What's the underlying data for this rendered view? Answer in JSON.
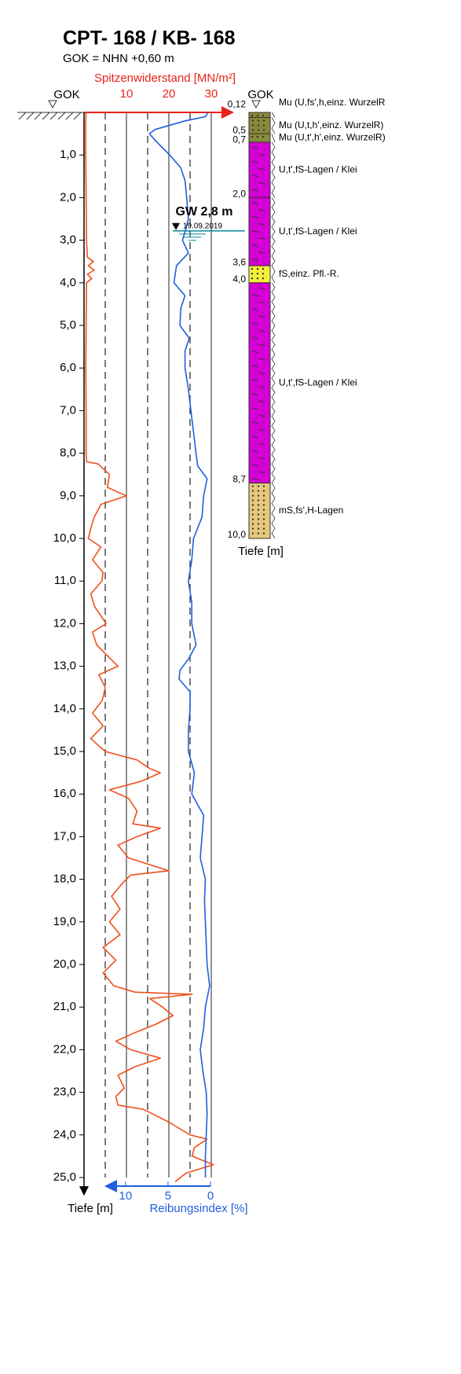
{
  "chart_data": {
    "type": "cpt-log",
    "title": "CPT- 168 / KB- 168",
    "subtitle": "GOK = NHN +0,60 m",
    "gok_label": "GOK",
    "depth_label": "Tiefe [m]",
    "ylim": [
      0,
      25.4
    ],
    "yticks": [
      {
        "value": 1,
        "label": "1,0"
      },
      {
        "value": 2,
        "label": "2,0"
      },
      {
        "value": 3,
        "label": "3,0"
      },
      {
        "value": 4,
        "label": "4,0"
      },
      {
        "value": 5,
        "label": "5,0"
      },
      {
        "value": 6,
        "label": "6,0"
      },
      {
        "value": 7,
        "label": "7,0"
      },
      {
        "value": 8,
        "label": "8,0"
      },
      {
        "value": 9,
        "label": "9,0"
      },
      {
        "value": 10,
        "label": "10,0"
      },
      {
        "value": 11,
        "label": "11,0"
      },
      {
        "value": 12,
        "label": "12,0"
      },
      {
        "value": 13,
        "label": "13,0"
      },
      {
        "value": 14,
        "label": "14,0"
      },
      {
        "value": 15,
        "label": "15,0"
      },
      {
        "value": 16,
        "label": "16,0"
      },
      {
        "value": 17,
        "label": "17,0"
      },
      {
        "value": 18,
        "label": "18,0"
      },
      {
        "value": 19,
        "label": "19,0"
      },
      {
        "value": 20,
        "label": "20,0"
      },
      {
        "value": 21,
        "label": "21,0"
      },
      {
        "value": 22,
        "label": "22,0"
      },
      {
        "value": 23,
        "label": "23,0"
      },
      {
        "value": 24,
        "label": "24,0"
      },
      {
        "value": 25,
        "label": "25,0"
      }
    ],
    "top_axis": {
      "label": "Spitzenwiderstand [MN/m²]",
      "color": "#e8221b",
      "xlim": [
        0,
        35
      ],
      "xticks": [
        10,
        20,
        30
      ],
      "minor_gridlines": [
        5,
        15,
        25
      ]
    },
    "bottom_axis": {
      "label": "Reibungsindex [%]",
      "color": "#1f5fe0",
      "xlim": [
        0,
        12.3
      ],
      "xticks": [
        10,
        5,
        0
      ]
    },
    "series": [
      {
        "axis": "top",
        "color": "#f0501e",
        "depth": [
          0,
          0.2,
          1,
          2,
          3,
          3.4,
          3.5,
          3.6,
          3.7,
          3.8,
          3.9,
          4,
          5,
          6,
          7,
          8,
          8.2,
          8.25,
          8.5,
          8.8,
          9,
          9.2,
          9.5,
          9.8,
          10,
          10.2,
          10.5,
          10.8,
          11,
          11.3,
          11.6,
          12,
          12.2,
          12.5,
          12.8,
          13,
          13.2,
          13.5,
          13.8,
          14.1,
          14.4,
          14.7,
          15,
          15.2,
          15.4,
          15.5,
          15.7,
          15.9,
          16.1,
          16.4,
          16.7,
          16.8,
          17,
          17.2,
          17.5,
          17.8,
          17.9,
          18.1,
          18.4,
          18.7,
          19,
          19.3,
          19.6,
          19.9,
          20.2,
          20.5,
          20.65,
          20.7,
          20.8,
          21,
          21.2,
          21.4,
          21.6,
          21.8,
          22,
          22.2,
          22.4,
          22.6,
          22.9,
          23.1,
          23.3,
          23.4,
          23.7,
          24,
          24.1,
          24.3,
          24.5,
          24.7,
          24.9,
          25.1
        ],
        "values": [
          0.5,
          0.4,
          0.4,
          0.5,
          0.6,
          0.8,
          2.2,
          1.0,
          2.4,
          0.8,
          1.8,
          0.6,
          0.5,
          0.4,
          0.5,
          0.5,
          0.6,
          3.3,
          6.0,
          5.5,
          10.0,
          4.0,
          2.4,
          1.5,
          1.0,
          4.0,
          2.0,
          4.5,
          4.2,
          1.6,
          2.5,
          5.2,
          2.0,
          3.0,
          6.0,
          8.0,
          3.5,
          5.0,
          4.3,
          2.0,
          4.5,
          1.6,
          5.0,
          12.5,
          15.5,
          18.0,
          13.5,
          6.0,
          10.5,
          12.5,
          11.5,
          18.0,
          12.5,
          8.0,
          10.5,
          20.0,
          11.0,
          9.0,
          6.5,
          8.5,
          6.0,
          8.5,
          4.5,
          7.5,
          4.5,
          7.0,
          12.0,
          25.5,
          15.5,
          18.5,
          21.0,
          17.0,
          12.0,
          7.5,
          11.0,
          18.0,
          12.0,
          8.0,
          9.5,
          7.5,
          8.0,
          14.0,
          20.0,
          25.0,
          29.0,
          26.0,
          25.5,
          30.5,
          24.0,
          21.5
        ]
      },
      {
        "axis": "bottom",
        "color": "#1f5fe0",
        "depth": [
          0,
          0.1,
          0.2,
          0.4,
          0.5,
          0.7,
          1,
          1.3,
          1.6,
          2,
          2.5,
          2.8,
          3,
          3.3,
          3.6,
          4,
          4.3,
          4.6,
          5,
          5.3,
          5.6,
          6,
          6.5,
          7,
          7.5,
          8,
          8.3,
          8.6,
          9,
          9.5,
          10,
          10.5,
          11,
          11.5,
          12,
          12.5,
          12.8,
          13.1,
          13.3,
          13.6,
          14,
          14.5,
          15,
          15.5,
          16,
          16.5,
          17,
          17.5,
          18,
          18.5,
          19,
          19.5,
          20,
          20.5,
          21,
          21.5,
          22,
          22.5,
          23,
          23.5,
          24,
          24.5,
          25
        ],
        "values": [
          0.3,
          0.6,
          3.0,
          6.5,
          7.2,
          6.3,
          4.8,
          3.5,
          3.0,
          2.8,
          2.6,
          3.0,
          3.3,
          2.6,
          4.0,
          4.3,
          3.0,
          3.5,
          3.6,
          2.5,
          3.0,
          3.0,
          2.6,
          2.3,
          2.0,
          1.7,
          1.5,
          0.4,
          0.8,
          1.0,
          2.0,
          2.2,
          2.6,
          2.2,
          2.2,
          1.7,
          2.5,
          3.6,
          3.7,
          2.4,
          2.4,
          2.6,
          2.6,
          1.9,
          2.2,
          0.8,
          1.0,
          1.2,
          0.6,
          0.7,
          0.6,
          0.5,
          0.4,
          0.1,
          0.6,
          0.8,
          1.2,
          0.9,
          0.5,
          0.4,
          0.5,
          0.6,
          0.6
        ]
      }
    ],
    "groundwater": {
      "label": "GW 2,8 m",
      "depth": 2.8,
      "date": "19.09.2019",
      "color": "#0a8a9a"
    },
    "layers": [
      {
        "bottom": {
          "value": 0.12,
          "label": "0,12"
        },
        "color": "#8a8a3c",
        "description": "Mu (U,fs',h,einz. WurzelR"
      },
      {
        "bottom": {
          "value": 0.5,
          "label": "0,5"
        },
        "color": "#8a8a3c",
        "description": "Mu (U,t,h',einz. WurzelR)"
      },
      {
        "bottom": {
          "value": 0.7,
          "label": "0,7"
        },
        "color": "#8a8a3c",
        "description": "Mu (U,t',h',einz. WurzelR)"
      },
      {
        "bottom": {
          "value": 2.0,
          "label": "2,0"
        },
        "color": "#d400d4",
        "description": "U,t',fS-Lagen / Klei"
      },
      {
        "bottom": {
          "value": 3.6,
          "label": "3,6"
        },
        "color": "#d400d4",
        "description": "U,t',fS-Lagen / Klei"
      },
      {
        "bottom": {
          "value": 4.0,
          "label": "4,0"
        },
        "color": "#f5f03a",
        "description": "fS,einz. Pfl.-R."
      },
      {
        "bottom": {
          "value": 8.7,
          "label": "8,7"
        },
        "color": "#d400d4",
        "description": "U,t',fS-Lagen / Klei"
      },
      {
        "bottom": {
          "value": 10.0,
          "label": "10,0"
        },
        "color": "#e6c77c",
        "description": "mS,fs',H-Lagen"
      }
    ]
  }
}
